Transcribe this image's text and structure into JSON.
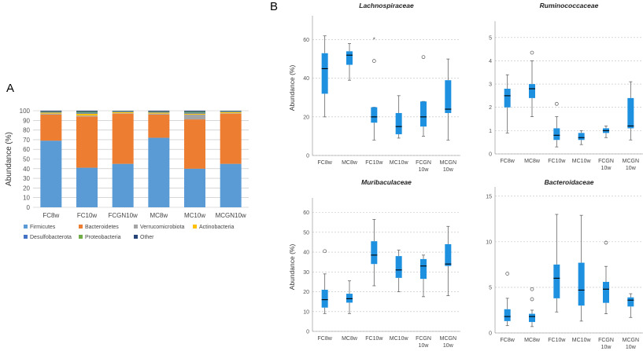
{
  "panel_labels": {
    "a": "A",
    "b": "B"
  },
  "colors": {
    "firmicutes": "#5B9BD5",
    "bacteroidetes": "#ED7D31",
    "verrucomicrobiota": "#A5A5A5",
    "actinobacteria": "#FFC000",
    "desulfobacterota": "#4472C4",
    "proteobacteria": "#70AD47",
    "other": "#264478",
    "box": "#1E90E0",
    "grid": "#BFBFBF"
  },
  "chart_data": [
    {
      "id": "stacked",
      "type": "bar",
      "stacked": true,
      "title": "",
      "xlabel": "",
      "ylabel": "Abundance (%)",
      "ylim": [
        0,
        100
      ],
      "yticks": [
        0,
        10,
        20,
        30,
        40,
        50,
        60,
        70,
        80,
        90,
        100
      ],
      "categories": [
        "FC8w",
        "FC10w",
        "FCGN10w",
        "MC8w",
        "MC10w",
        "MCGN10w"
      ],
      "legend_position": "bottom",
      "series": [
        {
          "name": "Firmicutes",
          "key": "firmicutes",
          "values": [
            69,
            41,
            45,
            72,
            40,
            45
          ]
        },
        {
          "name": "Bacteroidetes",
          "key": "bacteroidetes",
          "values": [
            27,
            53,
            52,
            24,
            51,
            52
          ]
        },
        {
          "name": "Verrucomicrobiota",
          "key": "verrucomicrobiota",
          "values": [
            1,
            1,
            0.5,
            1,
            5,
            0.5
          ]
        },
        {
          "name": "Actinobacteria",
          "key": "actinobacteria",
          "values": [
            1,
            2,
            1,
            1,
            1,
            1
          ]
        },
        {
          "name": "Desulfobacterota",
          "key": "desulfobacterota",
          "values": [
            0.5,
            1,
            0.5,
            0.5,
            1,
            0.5
          ]
        },
        {
          "name": "Proteobacteria",
          "key": "proteobacteria",
          "values": [
            0.5,
            1,
            0.5,
            0.5,
            1,
            0.5
          ]
        },
        {
          "name": "Other",
          "key": "other",
          "values": [
            1,
            1,
            0.5,
            1,
            1,
            0.5
          ]
        }
      ]
    },
    {
      "id": "lachno",
      "type": "box",
      "title": "Lachnospiraceae",
      "ylabel": "Abundance (%)",
      "ylim": [
        0,
        70
      ],
      "yticks": [
        0,
        20,
        40,
        60
      ],
      "categories": [
        "FC8w",
        "MC8w",
        "FC10w",
        "MC10w",
        "FCGN 10w",
        "MCGN 10w"
      ],
      "boxes": [
        {
          "min": 20,
          "q1": 32,
          "median": 45,
          "q3": 53,
          "max": 62,
          "outliers": []
        },
        {
          "min": 39,
          "q1": 47,
          "median": 52,
          "q3": 54,
          "max": 58,
          "outliers": []
        },
        {
          "min": 8,
          "q1": 17,
          "median": 20,
          "q3": 25,
          "max": 25,
          "outliers": [
            49
          ],
          "extremes": [
            60
          ]
        },
        {
          "min": 9,
          "q1": 11,
          "median": 15,
          "q3": 22,
          "max": 31,
          "outliers": []
        },
        {
          "min": 10,
          "q1": 15,
          "median": 20,
          "q3": 28,
          "max": 28,
          "outliers": [
            51
          ]
        },
        {
          "min": 8,
          "q1": 22,
          "median": 24,
          "q3": 39,
          "max": 50,
          "outliers": []
        }
      ]
    },
    {
      "id": "rumino",
      "type": "box",
      "title": "Ruminococcaceae",
      "ylabel": "",
      "ylim": [
        0,
        5.5
      ],
      "yticks": [
        0,
        1,
        2,
        3,
        4,
        5
      ],
      "categories": [
        "FC8w",
        "MC8w",
        "FC10w",
        "MC10w",
        "FCGN 10w",
        "MCGN 10w"
      ],
      "boxes": [
        {
          "min": 0.9,
          "q1": 2.0,
          "median": 2.5,
          "q3": 2.8,
          "max": 3.4,
          "outliers": []
        },
        {
          "min": 1.6,
          "q1": 2.4,
          "median": 2.8,
          "q3": 3.0,
          "max": 4.0,
          "outliers": [
            4.35
          ]
        },
        {
          "min": 0.3,
          "q1": 0.6,
          "median": 0.8,
          "q3": 1.1,
          "max": 1.6,
          "outliers": [
            2.15
          ]
        },
        {
          "min": 0.4,
          "q1": 0.6,
          "median": 0.7,
          "q3": 0.9,
          "max": 1.0,
          "outliers": []
        },
        {
          "min": 0.7,
          "q1": 0.9,
          "median": 1.0,
          "q3": 1.1,
          "max": 1.2,
          "outliers": []
        },
        {
          "min": 0.6,
          "q1": 1.1,
          "median": 1.2,
          "q3": 2.4,
          "max": 3.1,
          "outliers": []
        }
      ]
    },
    {
      "id": "muri",
      "type": "box",
      "title": "Muribaculaceae",
      "ylabel": "Abundance (%)",
      "ylim": [
        0,
        65
      ],
      "yticks": [
        0,
        10,
        20,
        30,
        40,
        50,
        60
      ],
      "categories": [
        "FC8w",
        "MC8w",
        "FC10w",
        "MC10w",
        "FCGN 10w",
        "MCGN 10w"
      ],
      "boxes": [
        {
          "min": 9,
          "q1": 12,
          "median": 16,
          "q3": 21,
          "max": 29,
          "outliers": [
            40.5
          ]
        },
        {
          "min": 9,
          "q1": 14.5,
          "median": 16.5,
          "q3": 19,
          "max": 25.5,
          "outliers": []
        },
        {
          "min": 23,
          "q1": 34,
          "median": 38.5,
          "q3": 45.5,
          "max": 56.5,
          "outliers": []
        },
        {
          "min": 20,
          "q1": 27,
          "median": 31,
          "q3": 38,
          "max": 41,
          "outliers": []
        },
        {
          "min": 17.5,
          "q1": 26.5,
          "median": 33,
          "q3": 36.5,
          "max": 38.5,
          "outliers": []
        },
        {
          "min": 18,
          "q1": 33,
          "median": 34,
          "q3": 44,
          "max": 53,
          "outliers": []
        }
      ]
    },
    {
      "id": "bacte",
      "type": "box",
      "title": "Bacteroidaceae",
      "ylabel": "",
      "ylim": [
        0,
        15.5
      ],
      "yticks": [
        0,
        5,
        10,
        15
      ],
      "categories": [
        "FC8w",
        "MC8w",
        "FC10w",
        "MC10w",
        "FCGN 10w",
        "MCGN 10w"
      ],
      "boxes": [
        {
          "min": 0.8,
          "q1": 1.3,
          "median": 1.8,
          "q3": 2.6,
          "max": 3.8,
          "outliers": [
            6.5
          ]
        },
        {
          "min": 0.7,
          "q1": 1.2,
          "median": 1.8,
          "q3": 2.1,
          "max": 2.5,
          "outliers": [
            3.7,
            4.8
          ]
        },
        {
          "min": 2.3,
          "q1": 3.8,
          "median": 6.0,
          "q3": 7.5,
          "max": 13.0,
          "outliers": []
        },
        {
          "min": 1.3,
          "q1": 3.0,
          "median": 4.7,
          "q3": 7.7,
          "max": 12.9,
          "outliers": []
        },
        {
          "min": 2.1,
          "q1": 3.3,
          "median": 4.8,
          "q3": 5.6,
          "max": 7.3,
          "outliers": [
            9.9
          ]
        },
        {
          "min": 1.7,
          "q1": 2.9,
          "median": 3.6,
          "q3": 3.9,
          "max": 4.3,
          "outliers": []
        }
      ]
    }
  ]
}
